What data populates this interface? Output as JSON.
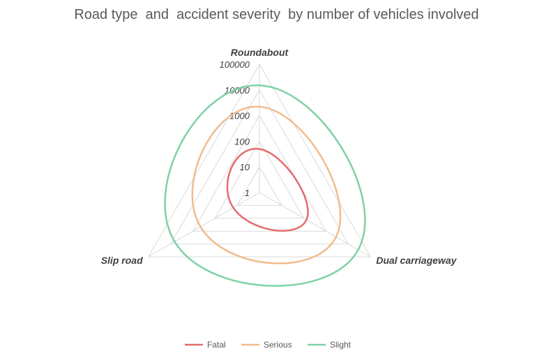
{
  "chart_data": {
    "type": "radar",
    "title": "Road type  and  accident severity  by number of vehicles involved",
    "axes": [
      "Roundabout",
      "Dual carriageway",
      "Slip road"
    ],
    "scale": "log",
    "ticks": [
      "1",
      "10",
      "100",
      "1000",
      "10000",
      "100000"
    ],
    "range": [
      1,
      100000
    ],
    "grid": true,
    "legend_position": "bottom",
    "series": [
      {
        "name": "Fatal",
        "color": "#E46C6C",
        "values": [
          50,
          130,
          15
        ]
      },
      {
        "name": "Serious",
        "color": "#F0BC8C",
        "values": [
          2200,
          2800,
          450
        ]
      },
      {
        "name": "Slight",
        "color": "#7ED1A4",
        "values": [
          15000,
          28000,
          6500
        ]
      }
    ]
  }
}
